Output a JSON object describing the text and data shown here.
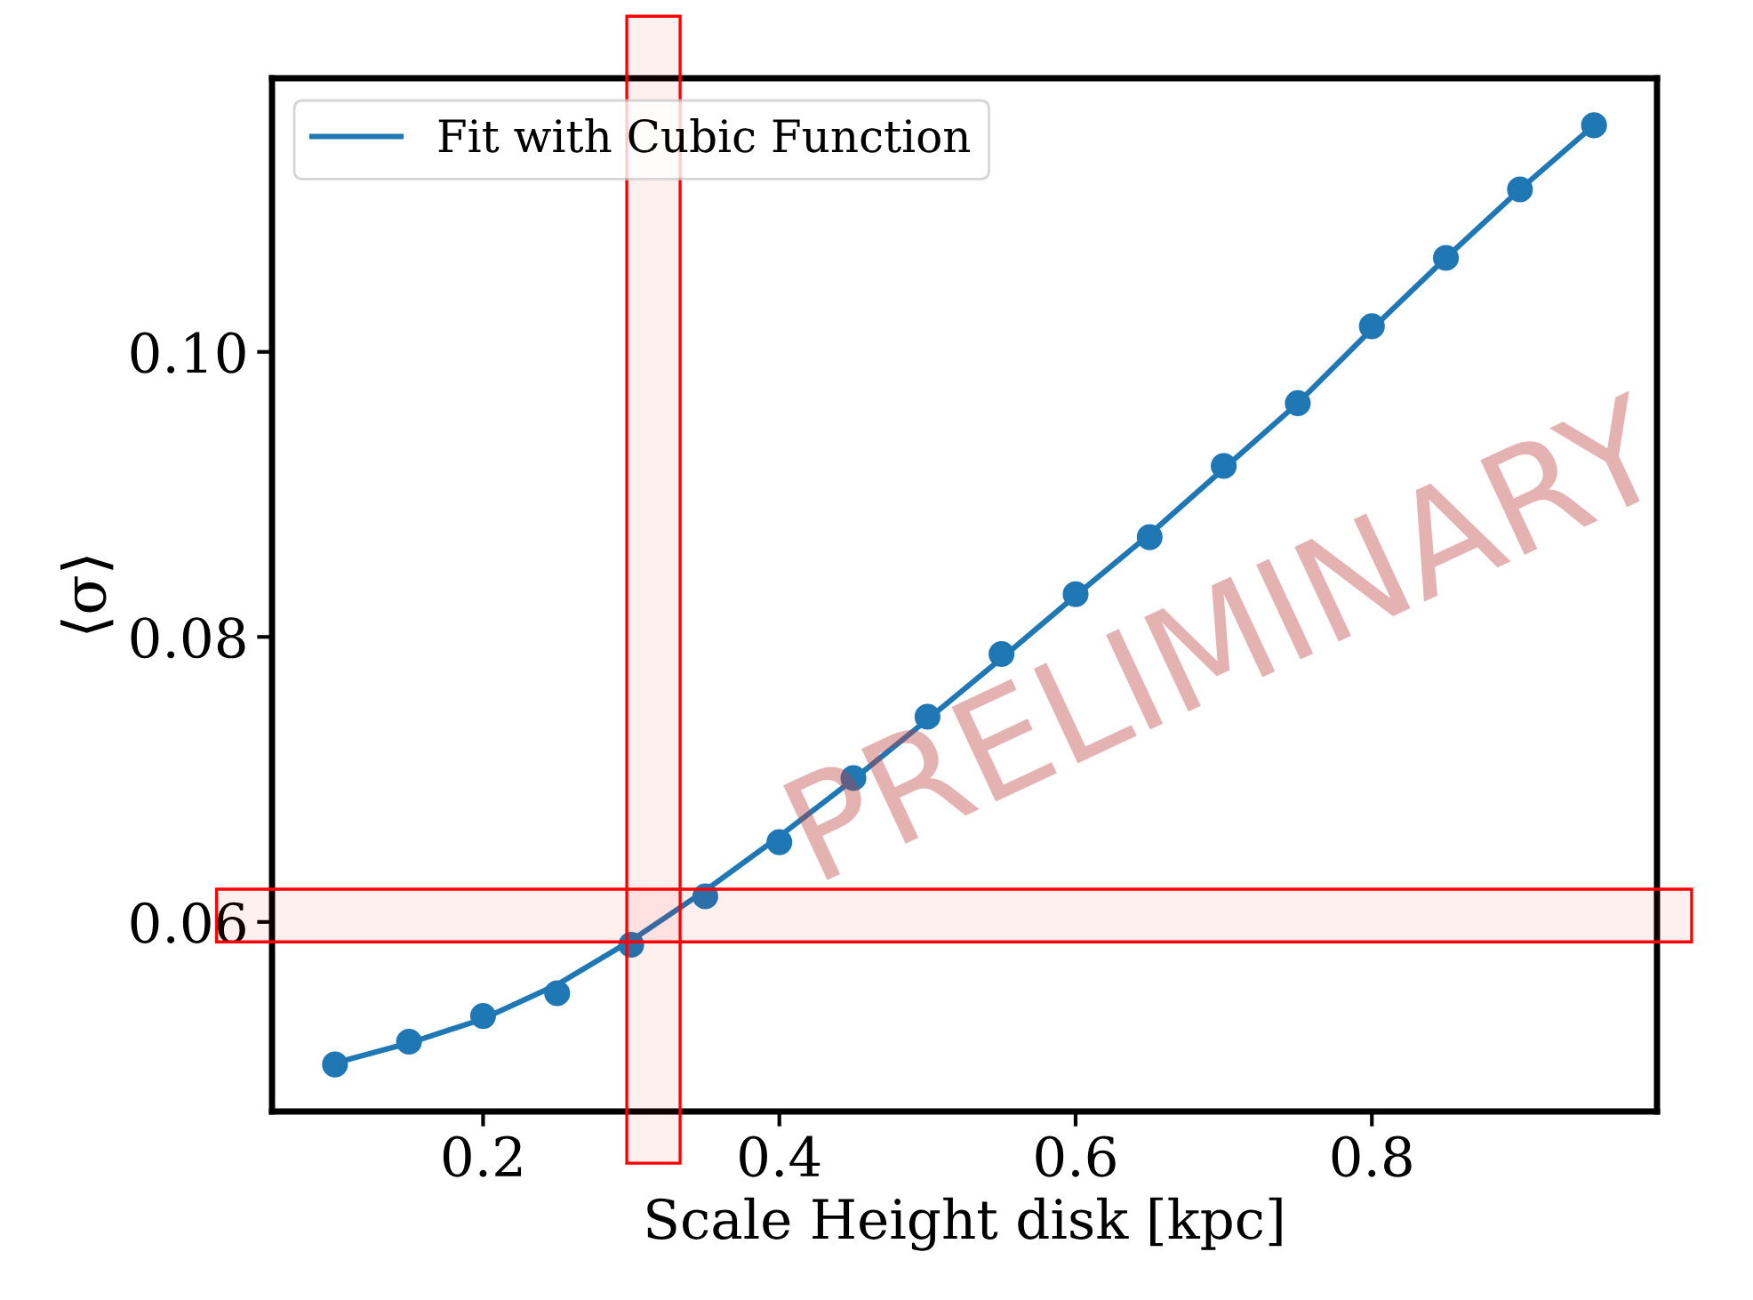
{
  "chart_data": {
    "type": "scatter",
    "xlabel": "Scale Height disk [kpc]",
    "ylabel": "⟨σ⟩",
    "x": [
      0.1,
      0.15,
      0.2,
      0.25,
      0.3,
      0.35,
      0.4,
      0.45,
      0.5,
      0.55,
      0.6,
      0.65,
      0.7,
      0.75,
      0.8,
      0.85,
      0.9,
      0.95
    ],
    "series": [
      {
        "color": "#1f77b4",
        "marker": "circle",
        "values": [
          0.05,
          0.0516,
          0.0534,
          0.055,
          0.0584,
          0.0618,
          0.0656,
          0.0701,
          0.0744,
          0.0788,
          0.083,
          0.087,
          0.092,
          0.0964,
          0.1018,
          0.1066,
          0.1114,
          0.1159
        ]
      },
      {
        "type": "line",
        "name": "Fit with Cubic Function",
        "color": "#1f77b4",
        "line_style": "solid",
        "values": [
          0.0501,
          0.0515,
          0.0532,
          0.0556,
          0.0587,
          0.0622,
          0.066,
          0.07,
          0.0742,
          0.0785,
          0.0829,
          0.0872,
          0.0918,
          0.0964,
          0.1016,
          0.1066,
          0.1114,
          0.1159
        ]
      }
    ],
    "xlim": [
      0.0575,
      0.9925
    ],
    "ylim": [
      0.0467,
      0.1192
    ],
    "xticks": [
      0.2,
      0.4,
      0.6,
      0.8
    ],
    "yticks": [
      {
        "value": 0.06,
        "label": "0.06"
      },
      {
        "value": 0.08,
        "label": "0.08"
      },
      {
        "value": 0.1,
        "label": "0.10"
      }
    ],
    "bands": [
      {
        "axis": "x",
        "from": 0.297,
        "to": 0.333,
        "color": "#ff0000"
      },
      {
        "axis": "y",
        "from": 0.0586,
        "to": 0.0623,
        "color": "#ff0000"
      }
    ],
    "annotations": [
      "PRELIMINARY"
    ],
    "legend": "top left",
    "grid": false
  }
}
